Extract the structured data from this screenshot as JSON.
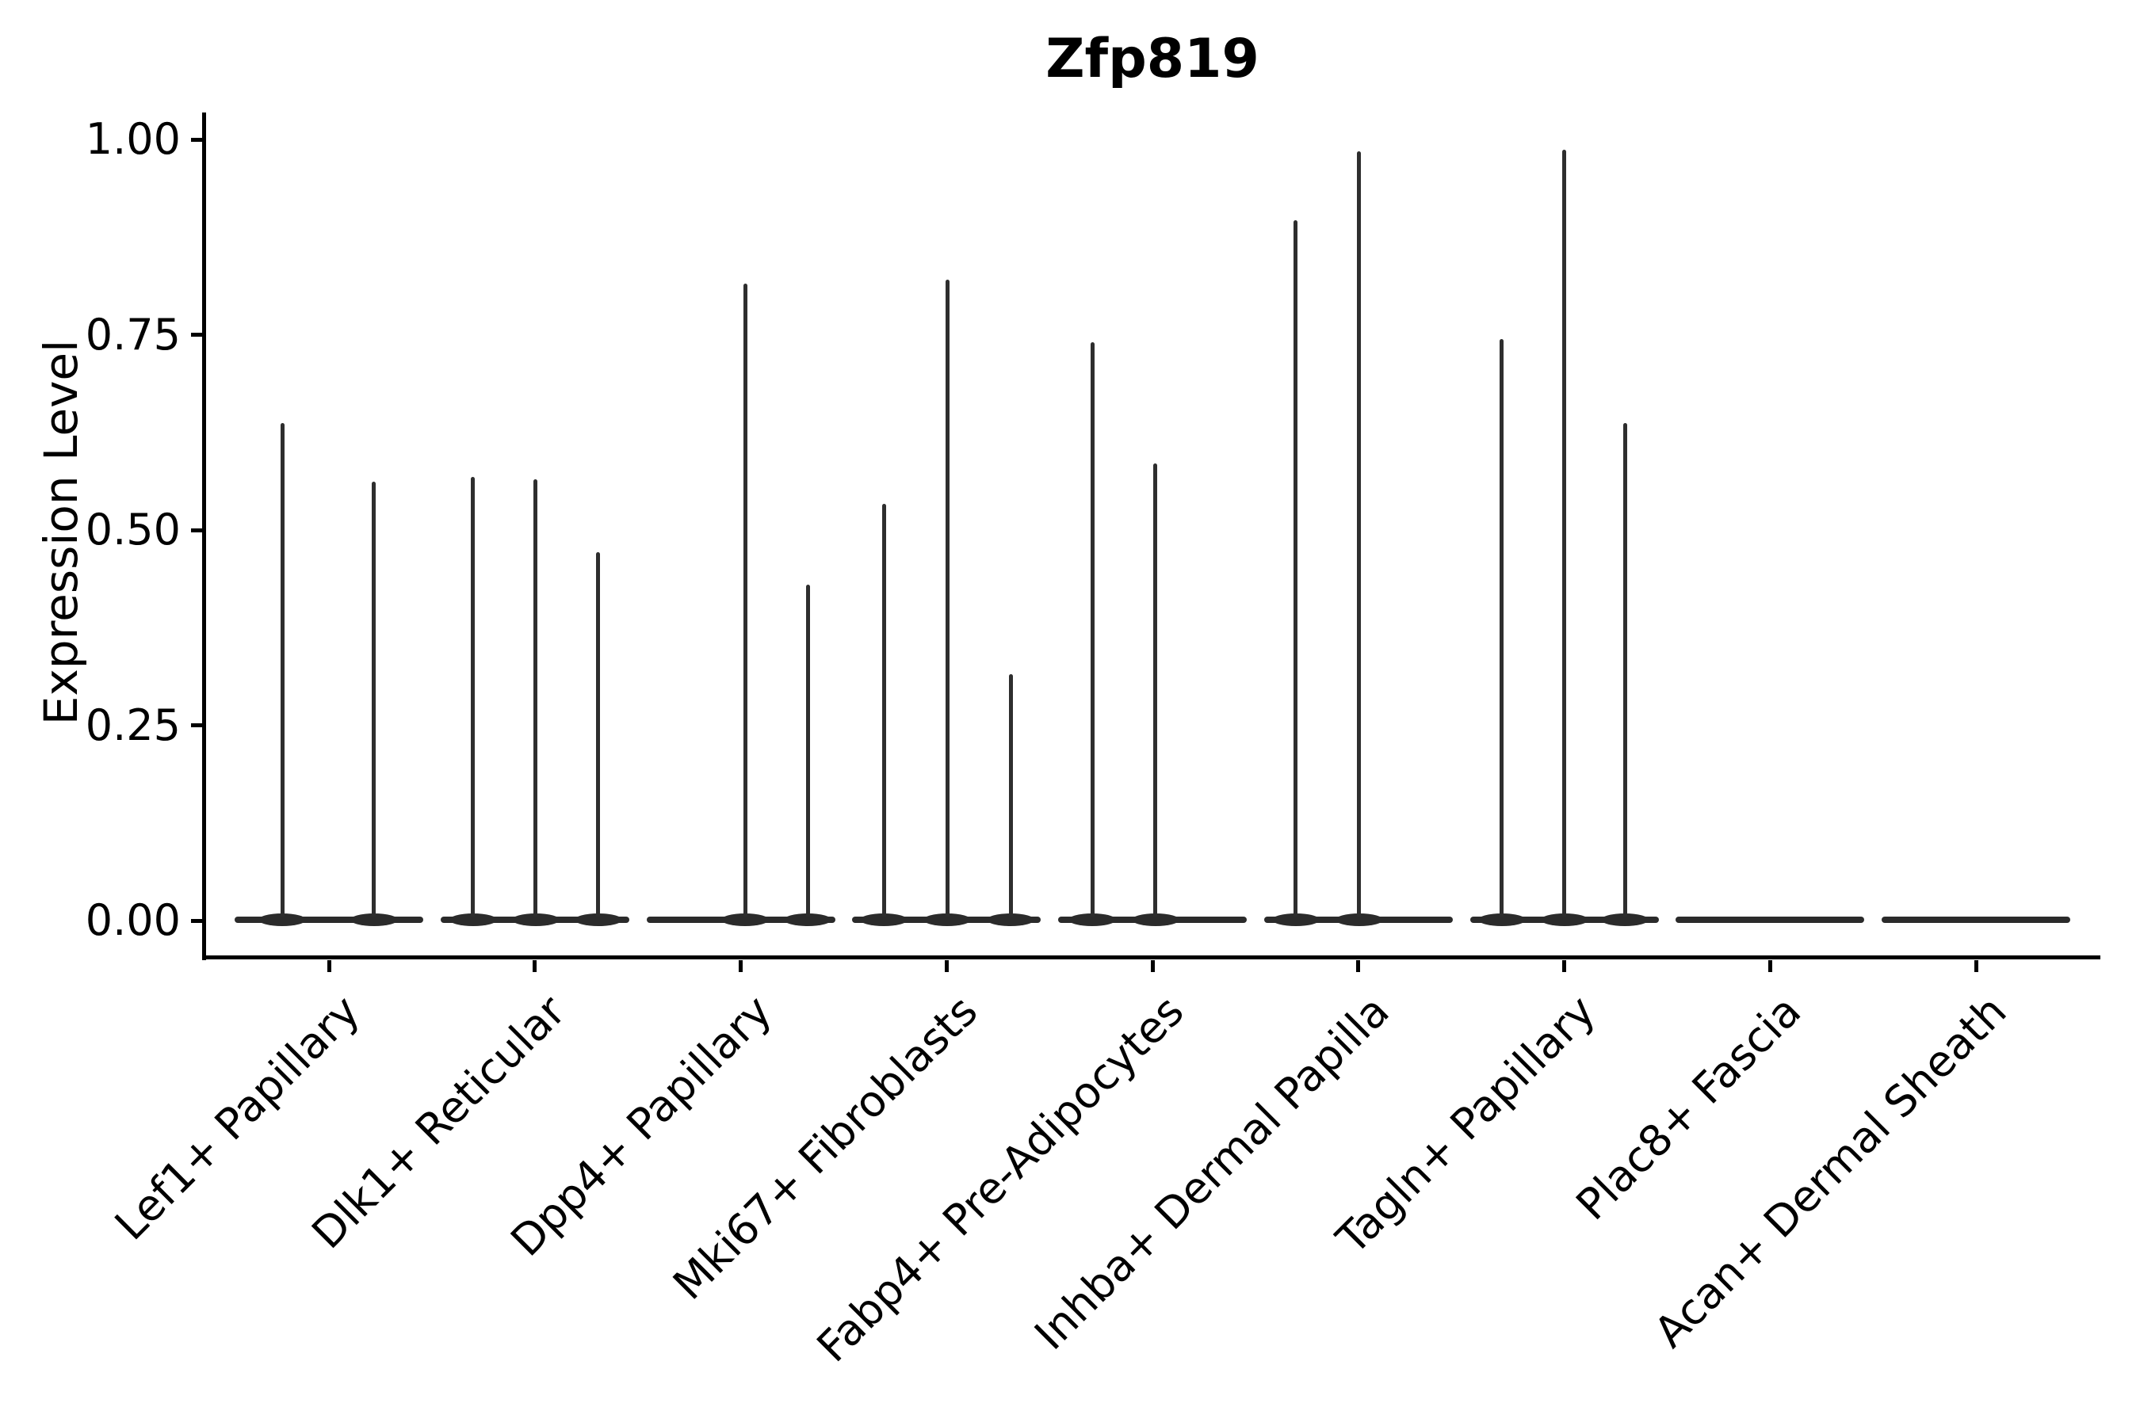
{
  "title": "Zfp819",
  "y_axis": {
    "label": "Expression Level",
    "tick_labels": [
      "1.00",
      "0.75",
      "0.50",
      "0.25",
      "0.00"
    ]
  },
  "x_axis": {
    "categories": [
      "Lef1+ Papillary",
      "Dlk1+ Reticular",
      "Dpp4+ Papillary",
      "Mki67+ Fibroblasts",
      "Fabp4+ Pre-Adipocytes",
      "Inhba+ Dermal Papilla",
      "Tagln+ Papillary",
      "Plac8+ Fascia",
      "Acan+ Dermal Sheath"
    ]
  },
  "chart_data": {
    "type": "violin",
    "title": "Zfp819",
    "xlabel": "",
    "ylabel": "Expression Level",
    "ylim": [
      0,
      1.0
    ],
    "yticks": [
      0.0,
      0.25,
      0.5,
      0.75,
      1.0
    ],
    "ytick_labels": [
      "0.00",
      "0.25",
      "0.50",
      "0.75",
      "1.00"
    ],
    "grid": false,
    "legend": false,
    "categories": [
      "Lef1+ Papillary",
      "Dlk1+ Reticular",
      "Dpp4+ Papillary",
      "Mki67+ Fibroblasts",
      "Fabp4+ Pre-Adipocytes",
      "Inhba+ Dermal Papilla",
      "Tagln+ Papillary",
      "Plac8+ Fascia",
      "Acan+ Dermal Sheath"
    ],
    "description": "Needle-shaped violins: dense mass at expression 0 (flat base bar per category) with thin spikes rising to the maximum expression of sub-populations; offset_frac is the horizontal position of each spike within the category column (fraction of category spacing from center).",
    "violins": [
      {
        "category": "Lef1+ Papillary",
        "baseline": 0,
        "spikes": [
          {
            "offset_frac": -0.227,
            "max": 0.637
          },
          {
            "offset_frac": 0.219,
            "max": 0.562
          }
        ]
      },
      {
        "category": "Dlk1+ Reticular",
        "baseline": 0,
        "spikes": [
          {
            "offset_frac": -0.3,
            "max": 0.568
          },
          {
            "offset_frac": 0.003,
            "max": 0.565
          },
          {
            "offset_frac": 0.308,
            "max": 0.472
          }
        ]
      },
      {
        "category": "Dpp4+ Papillary",
        "baseline": 0,
        "spikes": [
          {
            "offset_frac": 0.023,
            "max": 0.815
          },
          {
            "offset_frac": 0.327,
            "max": 0.43
          }
        ]
      },
      {
        "category": "Mki67+ Fibroblasts",
        "baseline": 0,
        "spikes": [
          {
            "offset_frac": -0.304,
            "max": 0.533
          },
          {
            "offset_frac": 0.004,
            "max": 0.82
          },
          {
            "offset_frac": 0.312,
            "max": 0.315
          }
        ]
      },
      {
        "category": "Fabp4+ Pre-Adipocytes",
        "baseline": 0,
        "spikes": [
          {
            "offset_frac": -0.292,
            "max": 0.74
          },
          {
            "offset_frac": 0.015,
            "max": 0.585
          }
        ]
      },
      {
        "category": "Inhba+ Dermal Papilla",
        "baseline": 0,
        "spikes": [
          {
            "offset_frac": -0.304,
            "max": 0.897
          },
          {
            "offset_frac": 0.004,
            "max": 0.985
          }
        ]
      },
      {
        "category": "Tagln+ Papillary",
        "baseline": 0,
        "spikes": [
          {
            "offset_frac": -0.304,
            "max": 0.744
          },
          {
            "offset_frac": 0.0,
            "max": 0.987
          },
          {
            "offset_frac": 0.296,
            "max": 0.637
          }
        ]
      },
      {
        "category": "Plac8+ Fascia",
        "baseline": 0,
        "spikes": []
      },
      {
        "category": "Acan+ Dermal Sheath",
        "baseline": 0,
        "spikes": []
      }
    ]
  }
}
